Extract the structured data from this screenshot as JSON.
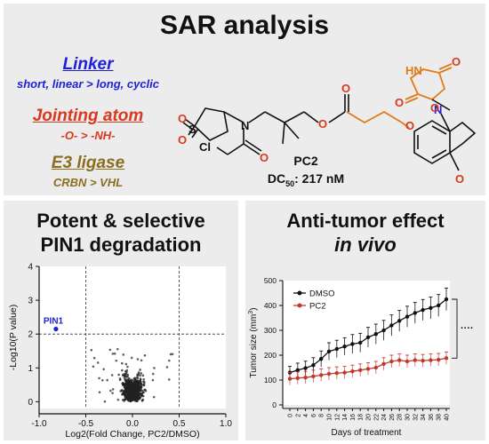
{
  "sar": {
    "title": "SAR analysis",
    "linker": {
      "heading": "Linker",
      "detail": "short, linear > long, cyclic"
    },
    "jointing": {
      "heading": "Jointing atom",
      "detail": "-O- > -NH-"
    },
    "e3": {
      "heading": "E3 ligase",
      "detail": "CRBN > VHL"
    },
    "compound": {
      "name": "PC2",
      "dc50_label": "DC",
      "dc50_sub": "50",
      "dc50_value": ": 217 nM"
    },
    "atoms": {
      "o": "O",
      "n": "N",
      "s": "S",
      "cl": "Cl",
      "hn": "HN"
    }
  },
  "degradation": {
    "title_line1": "Potent & selective",
    "title_line2": "PIN1 degradation",
    "highlight_label": "PIN1",
    "highlight_color": "#1f1fd8",
    "chart_data": {
      "type": "scatter",
      "xlabel": "Log2(Fold Change, PC2/DMSO)",
      "ylabel": "-Log10(P value)",
      "xlim": [
        -1.0,
        1.0
      ],
      "ylim": [
        -0.2,
        4
      ],
      "xticks": [
        "-1.0",
        "-0.5",
        "0.0",
        "0.5",
        "1.0"
      ],
      "yticks": [
        "0",
        "1",
        "2",
        "3",
        "4"
      ],
      "threshold_x": [
        -0.5,
        0.5
      ],
      "threshold_y": 2,
      "highlight_point": {
        "label": "PIN1",
        "x": -0.82,
        "y": 2.15
      }
    }
  },
  "tumor": {
    "title_line1": "Anti-tumor effect",
    "title_line2": "in vivo",
    "significance": "····",
    "chart_data": {
      "type": "line",
      "xlabel": "Days of treatment",
      "ylabel": "Tumor size (mm",
      "ylabel_sup": "3",
      "ylabel_end": ")",
      "ylim": [
        0,
        500
      ],
      "yticks": [
        "0",
        "100",
        "200",
        "300",
        "400",
        "500"
      ],
      "x": [
        0,
        2,
        4,
        6,
        8,
        10,
        12,
        14,
        16,
        18,
        20,
        22,
        24,
        26,
        28,
        30,
        32,
        34,
        36,
        38,
        40
      ],
      "series": [
        {
          "name": "DMSO",
          "color": "#111111",
          "values": [
            130,
            140,
            148,
            160,
            185,
            215,
            225,
            235,
            245,
            250,
            272,
            285,
            300,
            320,
            338,
            355,
            370,
            382,
            390,
            400,
            425
          ],
          "errors": [
            25,
            28,
            28,
            30,
            32,
            35,
            35,
            35,
            38,
            38,
            40,
            40,
            40,
            42,
            42,
            42,
            42,
            42,
            44,
            44,
            45
          ]
        },
        {
          "name": "PC2",
          "color": "#c0392b",
          "values": [
            105,
            108,
            110,
            115,
            120,
            125,
            128,
            130,
            135,
            140,
            145,
            150,
            165,
            175,
            180,
            175,
            180,
            178,
            180,
            182,
            188
          ],
          "errors": [
            25,
            25,
            25,
            25,
            25,
            25,
            25,
            25,
            25,
            25,
            25,
            25,
            25,
            25,
            25,
            25,
            25,
            25,
            25,
            25,
            25
          ]
        }
      ]
    }
  }
}
